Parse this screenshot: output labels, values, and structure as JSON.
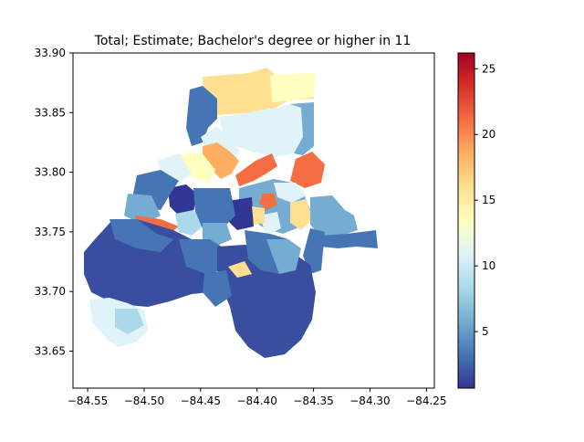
{
  "map": {
    "title": "Total; Estimate; Bachelor's degree or higher in 11",
    "x_ticks": [
      {
        "value": -84.55,
        "label": "−84.55"
      },
      {
        "value": -84.5,
        "label": "−84.50"
      },
      {
        "value": -84.45,
        "label": "−84.45"
      },
      {
        "value": -84.4,
        "label": "−84.40"
      },
      {
        "value": -84.35,
        "label": "−84.35"
      },
      {
        "value": -84.3,
        "label": "−84.30"
      },
      {
        "value": -84.25,
        "label": "−84.25"
      }
    ],
    "y_ticks": [
      {
        "value": 33.65,
        "label": "33.65"
      },
      {
        "value": 33.7,
        "label": "33.70"
      },
      {
        "value": 33.75,
        "label": "33.75"
      },
      {
        "value": 33.8,
        "label": "33.80"
      },
      {
        "value": 33.85,
        "label": "33.85"
      },
      {
        "value": 33.9,
        "label": "33.90"
      }
    ],
    "xlim": [
      -84.563,
      -84.243
    ],
    "ylim": [
      33.619,
      33.9
    ]
  },
  "colorbar": {
    "colormap": "RdYlBu_r",
    "range": [
      0.7,
      26.2
    ],
    "ticks": [
      {
        "value": 5,
        "label": "5"
      },
      {
        "value": 10,
        "label": "10"
      },
      {
        "value": 15,
        "label": "15"
      },
      {
        "value": 20,
        "label": "20"
      },
      {
        "value": 25,
        "label": "25"
      }
    ],
    "stops": [
      "#313695",
      "#4575b4",
      "#74add1",
      "#abd9e9",
      "#e0f3f8",
      "#ffffbf",
      "#fee090",
      "#fdae61",
      "#f46d43",
      "#d73027",
      "#a50026"
    ]
  }
}
